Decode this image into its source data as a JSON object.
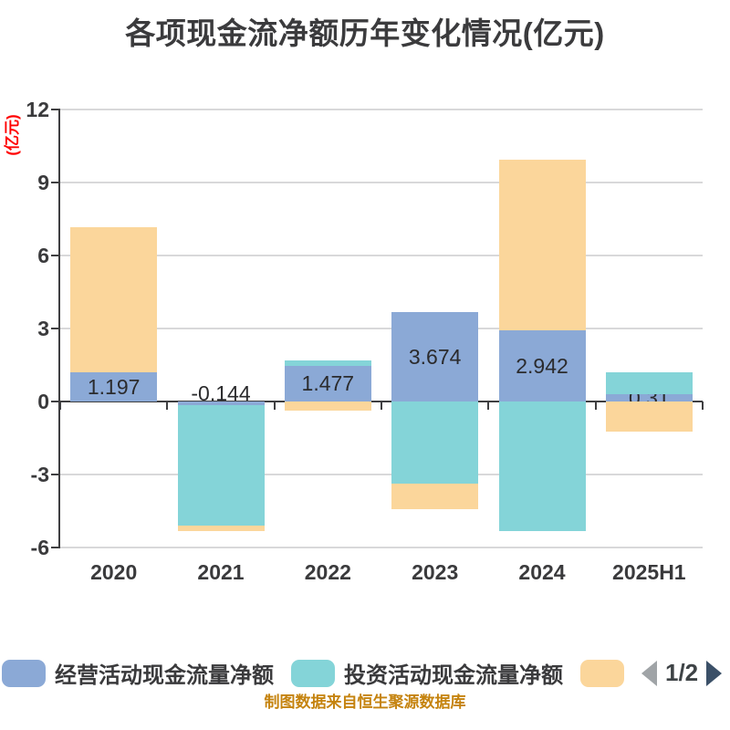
{
  "header": {
    "title": "各项现金流净额历年变化情况(亿元)"
  },
  "chart": {
    "y_unit_label": "(亿元)"
  },
  "chart_data": {
    "type": "bar",
    "stacked": true,
    "title": "各项现金流净额历年变化情况(亿元)",
    "categories": [
      "2020",
      "2021",
      "2022",
      "2023",
      "2024",
      "2025H1"
    ],
    "series": [
      {
        "name": "经营活动现金流量净额",
        "color_key": "operating",
        "values": [
          1.197,
          -0.144,
          1.477,
          3.674,
          2.942,
          0.31
        ],
        "labels": [
          "1.197",
          "-0.144",
          "1.477",
          "3.674",
          "2.942",
          "0.31"
        ],
        "show_labels": true
      },
      {
        "name": "投资活动现金流量净额",
        "color_key": "investing",
        "values": [
          0,
          -4.94,
          0.22,
          -3.38,
          -5.32,
          0.88
        ],
        "show_labels": false
      },
      {
        "name": "",
        "color_key": "other",
        "values": [
          5.97,
          -0.25,
          -0.36,
          -1.06,
          6.99,
          -1.24
        ],
        "show_labels": false
      }
    ],
    "ylim": [
      -6,
      12
    ],
    "yticks": [
      12,
      9,
      6,
      3,
      0,
      -3,
      -6
    ],
    "grid": true,
    "legend_position": "bottom"
  },
  "legend": {
    "items": [
      {
        "label": "经营活动现金流量净额",
        "color_key": "operating"
      },
      {
        "label": "投资活动现金流量净额",
        "color_key": "investing"
      },
      {
        "label": "",
        "color_key": "other"
      }
    ],
    "pager": {
      "text": "1/2"
    }
  },
  "footer": {
    "caption": "制图数据来自恒生聚源数据库"
  },
  "colors": {
    "operating": "#8ba9d6",
    "investing": "#84d4d8",
    "other": "#fbd69b",
    "title_text": "#3b3b3d",
    "axis_text": "#3a3a3c",
    "axis_line": "#3f3f41",
    "gridline": "#d8d8da",
    "unit_label": "#ff0000",
    "caption": "#c5830e",
    "data_label": "#2b2b2d",
    "pager_text": "#3e4346"
  }
}
